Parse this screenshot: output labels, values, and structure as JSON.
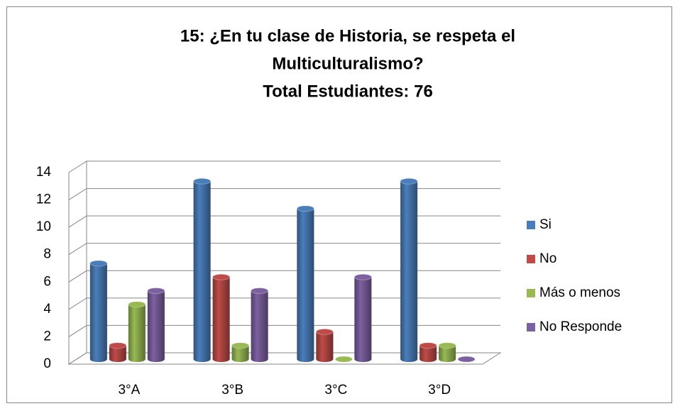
{
  "chart_data": {
    "type": "bar3d",
    "title": [
      "15: ¿En tu clase de Historia, se respeta el",
      "Multiculturalismo?",
      "Total Estudiantes: 76"
    ],
    "categories": [
      "3°A",
      "3°B",
      "3°C",
      "3°D"
    ],
    "series": [
      {
        "name": "Si",
        "color": "#4a7ebb",
        "values": [
          7,
          13,
          11,
          13
        ]
      },
      {
        "name": "No",
        "color": "#be4b48",
        "values": [
          1,
          6,
          2,
          1
        ]
      },
      {
        "name": "Más o menos",
        "color": "#98b954",
        "values": [
          4,
          1,
          0,
          1
        ]
      },
      {
        "name": "No Responde",
        "color": "#7d60a0",
        "values": [
          5,
          5,
          6,
          0
        ]
      }
    ],
    "ylim": [
      0,
      14
    ],
    "yticks": [
      0,
      2,
      4,
      6,
      8,
      10,
      12,
      14
    ],
    "grid": true,
    "legend": "right"
  }
}
